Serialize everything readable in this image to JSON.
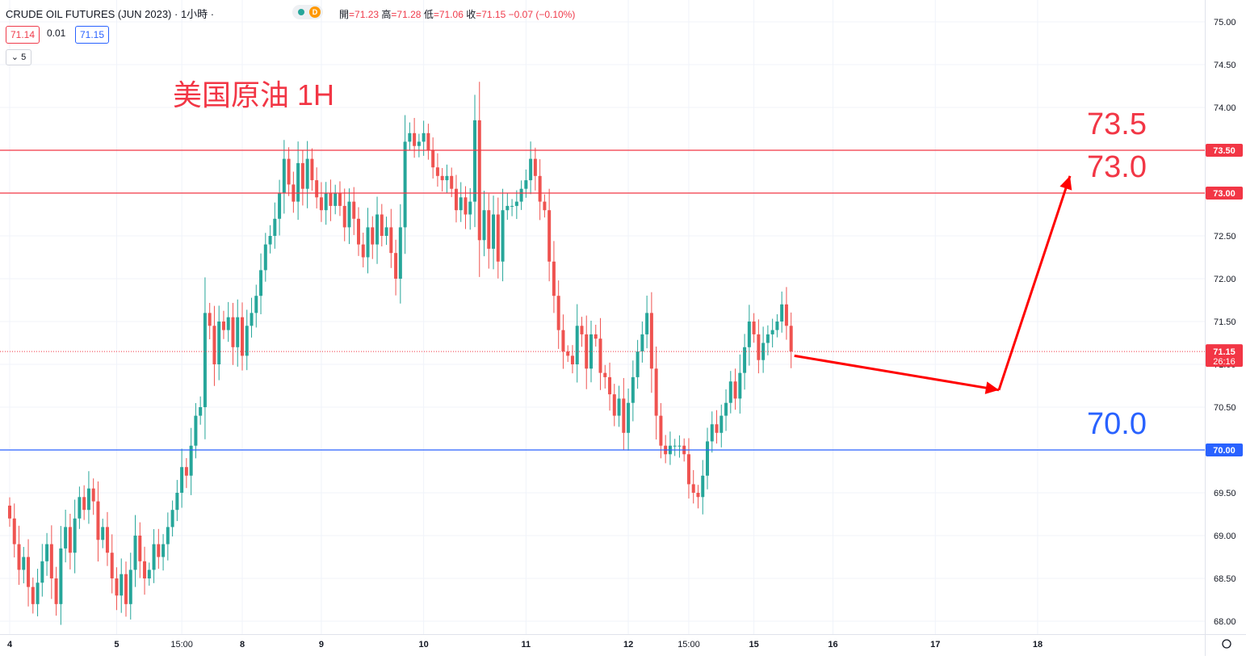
{
  "header": {
    "symbol": "CRUDE OIL FUTURES (JUN 2023)",
    "interval": "· 1小時 ·",
    "ohlc": {
      "open_label": "開",
      "open": "=71.23",
      "high_label": "高",
      "high": "=71.28",
      "low_label": "低",
      "low": "=71.06",
      "close_label": "收",
      "close": "=71.15",
      "change": "−0.07 (−0.10%)"
    },
    "bid": "71.14",
    "spread": "0.01",
    "ask": "71.15",
    "collapse_count": "5",
    "status_letter": "D"
  },
  "chart_data": {
    "type": "candlestick",
    "title": "美国原油 1H",
    "ylim": [
      67.9,
      75.2
    ],
    "y_ticks": [
      "68.00",
      "68.50",
      "69.00",
      "69.50",
      "70.00",
      "70.50",
      "71.00",
      "71.50",
      "72.00",
      "72.50",
      "73.00",
      "73.50",
      "74.00",
      "74.50",
      "75.00"
    ],
    "x_labels": [
      {
        "label": "4",
        "bar": 0
      },
      {
        "label": "5",
        "bar": 23
      },
      {
        "label": "15:00",
        "bar": 37
      },
      {
        "label": "8",
        "bar": 50
      },
      {
        "label": "9",
        "bar": 67
      },
      {
        "label": "10",
        "bar": 89
      },
      {
        "label": "11",
        "bar": 111
      },
      {
        "label": "12",
        "bar": 133
      },
      {
        "label": "15:00",
        "bar": 146
      },
      {
        "label": "15",
        "bar": 160
      },
      {
        "label": "16",
        "bar": 177
      },
      {
        "label": "17",
        "bar": 199
      },
      {
        "label": "18",
        "bar": 221
      }
    ],
    "closes": [
      69.2,
      68.9,
      68.6,
      68.75,
      68.4,
      68.2,
      68.45,
      68.7,
      68.9,
      68.5,
      68.2,
      68.85,
      69.1,
      68.8,
      69.2,
      69.45,
      69.3,
      69.55,
      69.4,
      68.95,
      69.1,
      68.8,
      68.5,
      68.3,
      68.55,
      68.2,
      68.6,
      69.0,
      68.7,
      68.5,
      68.6,
      68.9,
      68.75,
      68.9,
      69.1,
      69.3,
      69.5,
      69.8,
      69.7,
      70.05,
      70.4,
      70.5,
      71.6,
      71.45,
      71.0,
      71.5,
      71.4,
      71.55,
      71.2,
      71.55,
      71.1,
      71.45,
      71.6,
      71.8,
      72.1,
      72.4,
      72.5,
      72.7,
      73.0,
      73.4,
      73.1,
      72.9,
      73.35,
      73.05,
      73.4,
      73.15,
      72.95,
      72.8,
      73.0,
      72.85,
      73.0,
      72.85,
      72.6,
      72.9,
      72.7,
      72.4,
      72.25,
      72.6,
      72.4,
      72.75,
      72.5,
      72.6,
      72.3,
      72.0,
      72.6,
      73.6,
      73.7,
      73.55,
      73.6,
      73.7,
      73.5,
      73.3,
      73.2,
      73.15,
      73.2,
      73.05,
      72.8,
      72.95,
      72.75,
      72.9,
      73.85,
      72.45,
      72.8,
      72.35,
      72.75,
      72.2,
      72.8,
      72.85,
      72.85,
      72.9,
      73.05,
      73.15,
      73.4,
      73.2,
      72.9,
      72.8,
      72.2,
      71.8,
      71.4,
      71.15,
      71.1,
      71.0,
      71.45,
      71.35,
      70.95,
      71.35,
      71.3,
      70.9,
      70.85,
      70.65,
      70.4,
      70.6,
      70.2,
      70.55,
      70.85,
      71.15,
      71.35,
      71.6,
      70.95,
      70.4,
      70.05,
      69.95,
      70.05,
      70.05,
      70.05,
      69.95,
      69.6,
      69.5,
      69.45,
      69.7,
      70.1,
      70.3,
      70.2,
      70.4,
      70.55,
      70.8,
      70.6,
      70.9,
      71.2,
      71.5,
      71.35,
      71.05,
      71.25,
      71.35,
      71.4,
      71.5,
      71.7,
      71.45,
      71.15
    ]
  },
  "levels": [
    {
      "value": 73.5,
      "axis_label": "73.50",
      "big_label": "73.5",
      "color": "#f23645"
    },
    {
      "value": 73.0,
      "axis_label": "73.00",
      "big_label": "73.0",
      "color": "#f23645"
    },
    {
      "value": 70.0,
      "axis_label": "70.00",
      "big_label": "70.0",
      "color": "#2962ff"
    }
  ],
  "last_price": {
    "value": 71.15,
    "label": "71.15",
    "countdown": "26:16",
    "color": "#f23645"
  },
  "colors": {
    "up": "#26a69a",
    "down": "#ef5350",
    "grid": "#f0f3fa",
    "axis_text": "#131722",
    "annotation": "#ff0000"
  }
}
